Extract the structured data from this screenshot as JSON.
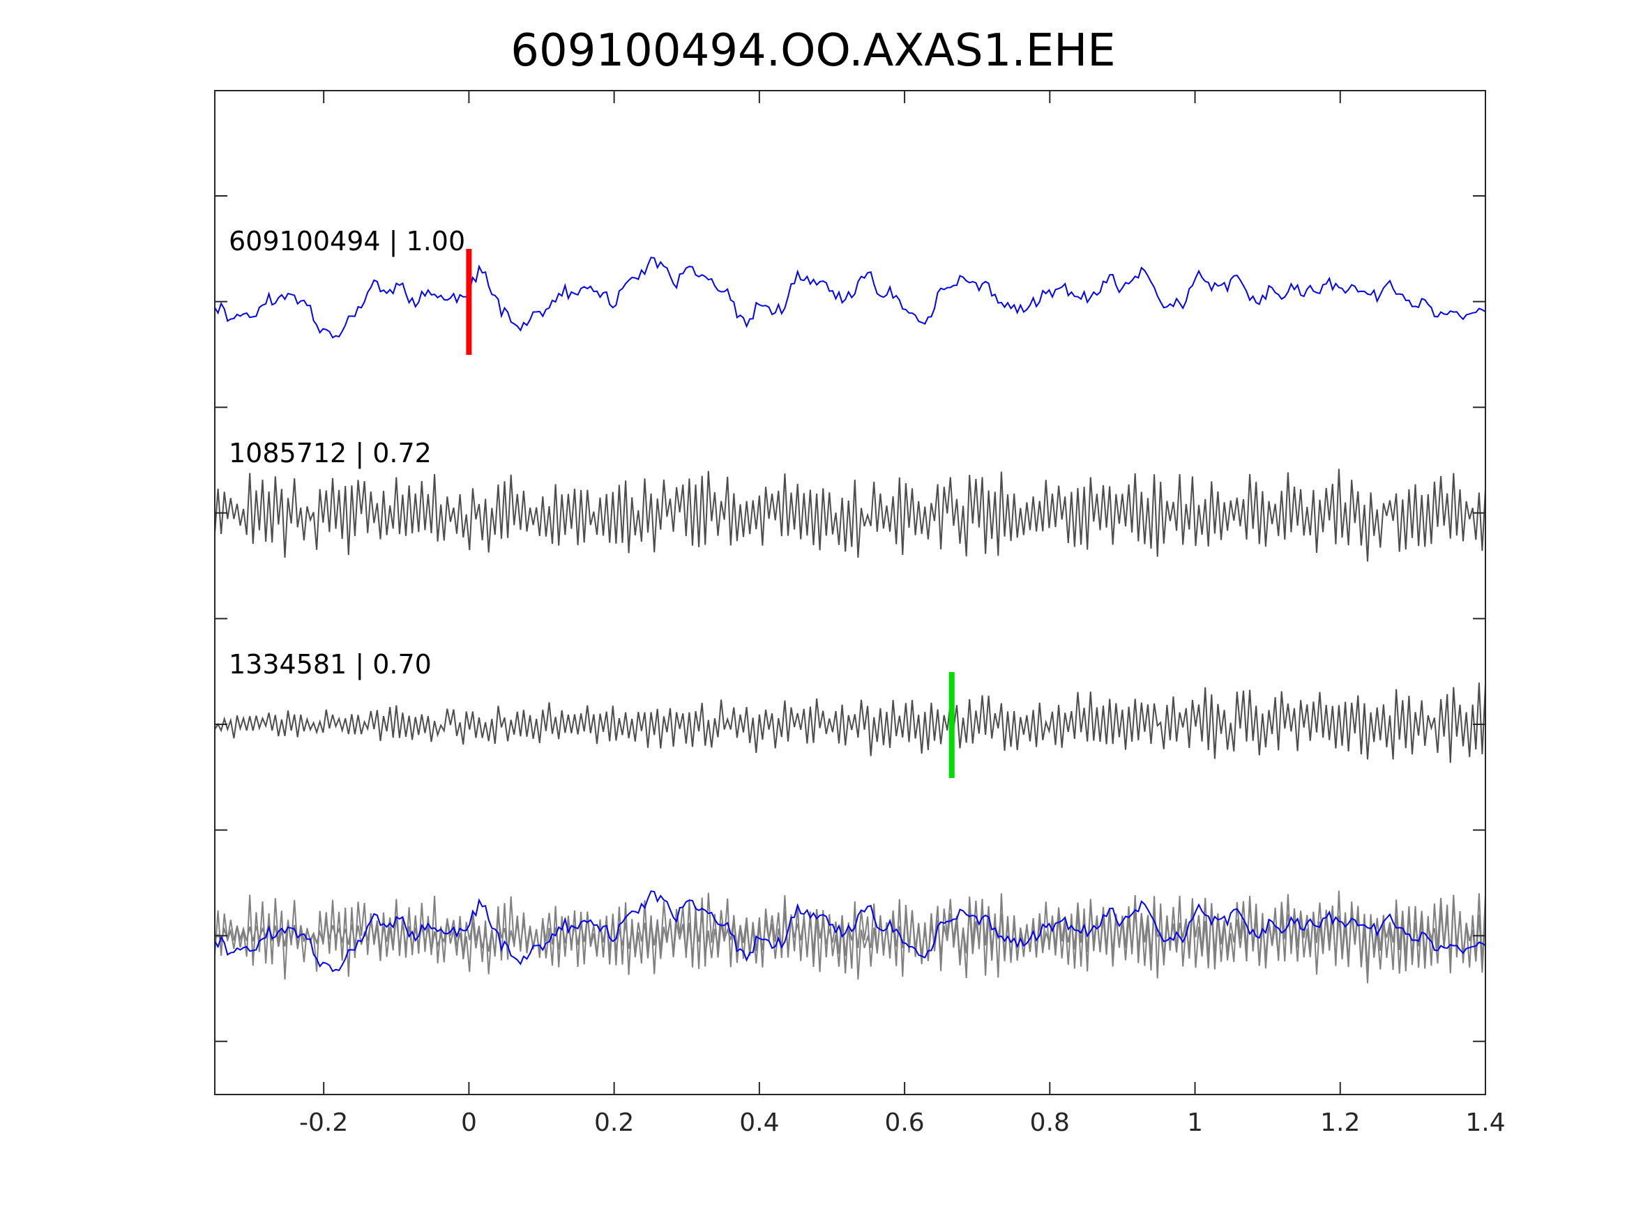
{
  "chart_data": {
    "type": "line",
    "title": "609100494.OO.AXAS1.EHE",
    "xlabel": "",
    "ylabel": "",
    "xlim": [
      -0.35,
      1.4
    ],
    "x_ticks": [
      -0.2,
      0,
      0.2,
      0.4,
      0.6,
      0.8,
      1,
      1.2,
      1.4
    ],
    "x_tick_labels": [
      "-0.2",
      "0",
      "0.2",
      "0.4",
      "0.6",
      "0.8",
      "1",
      "1.2",
      "1.4"
    ],
    "y_ticks_unlabeled": true,
    "grid": false,
    "series": [
      {
        "label": "609100494 | 1.00",
        "color": "#0000ff",
        "seed": 11,
        "style": "smooth",
        "amp": 0.42
      },
      {
        "label": "1085712 | 0.72",
        "color": "#4d4d4d",
        "seed": 23,
        "style": "jagged",
        "amp": 0.45
      },
      {
        "label": "1334581 | 0.70",
        "color": "#4d4d4d",
        "seed": 37,
        "style": "jagged-growing",
        "amp": 0.4
      }
    ],
    "overlay": {
      "description_colors": [
        "#808080",
        "#808080",
        "#0000ff"
      ]
    },
    "picks": [
      {
        "trace": 0,
        "x": 0.0,
        "color": "#ff0000"
      },
      {
        "trace": 2,
        "x": 0.665,
        "color": "#00dd00"
      }
    ]
  }
}
